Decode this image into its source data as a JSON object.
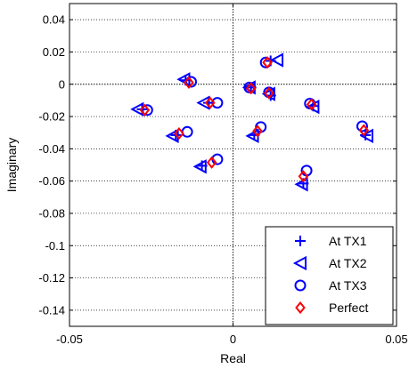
{
  "chart_data": {
    "type": "scatter",
    "title": "",
    "xlabel": "Real",
    "ylabel": "Imaginary",
    "xlim": [
      -0.05,
      0.05
    ],
    "ylim": [
      -0.15,
      0.05
    ],
    "xticks": [
      -0.05,
      0,
      0.05
    ],
    "xtick_labels": [
      "-0.05",
      "0",
      "0.05"
    ],
    "yticks": [
      0.04,
      0.02,
      0,
      -0.02,
      -0.04,
      -0.06,
      -0.08,
      -0.1,
      -0.12,
      -0.14
    ],
    "ytick_labels": [
      "0.04",
      "0.02",
      "0",
      "-0.02",
      "-0.04",
      "-0.06",
      "-0.08",
      "-0.1",
      "-0.12",
      "-0.14"
    ],
    "grid": true,
    "grid_style": "dotted",
    "zero_lines": true,
    "legend_position": "bottom-right",
    "series": [
      {
        "name": "At TX1",
        "marker": "plus",
        "color": "#0000ff",
        "points": [
          [
            -0.0278,
            -0.0155
          ],
          [
            -0.0145,
            0.0025
          ],
          [
            -0.0075,
            -0.0115
          ],
          [
            -0.0175,
            -0.0315
          ],
          [
            -0.0095,
            -0.0505
          ],
          [
            0.0055,
            -0.002
          ],
          [
            0.0115,
            0.0145
          ],
          [
            0.0115,
            -0.007
          ],
          [
            0.0065,
            -0.0315
          ],
          [
            0.0245,
            -0.0135
          ],
          [
            0.0215,
            -0.0615
          ],
          [
            0.0405,
            -0.0315
          ]
        ]
      },
      {
        "name": "At TX2",
        "marker": "triangle-left",
        "color": "#0000ff",
        "points": [
          [
            -0.0292,
            -0.0155
          ],
          [
            -0.015,
            0.003
          ],
          [
            -0.009,
            -0.0115
          ],
          [
            -0.0185,
            -0.032
          ],
          [
            -0.01,
            -0.051
          ],
          [
            0.005,
            -0.002
          ],
          [
            0.0135,
            0.015
          ],
          [
            0.011,
            -0.006
          ],
          [
            0.006,
            -0.032
          ],
          [
            0.0245,
            -0.014
          ],
          [
            0.021,
            -0.062
          ],
          [
            0.041,
            -0.032
          ]
        ]
      },
      {
        "name": "At TX3",
        "marker": "circle",
        "color": "#0000ff",
        "points": [
          [
            -0.0262,
            -0.016
          ],
          [
            -0.0128,
            0.0015
          ],
          [
            -0.0048,
            -0.0115
          ],
          [
            -0.014,
            -0.0295
          ],
          [
            -0.0048,
            -0.0465
          ],
          [
            0.005,
            -0.002
          ],
          [
            0.01,
            0.0135
          ],
          [
            0.011,
            -0.005
          ],
          [
            0.0085,
            -0.0265
          ],
          [
            0.0235,
            -0.012
          ],
          [
            0.0225,
            -0.0535
          ],
          [
            0.0395,
            -0.026
          ]
        ]
      },
      {
        "name": "Perfect",
        "marker": "diamond",
        "color": "#ff0000",
        "points": [
          [
            -0.027,
            -0.016
          ],
          [
            -0.0135,
            0.001
          ],
          [
            -0.007,
            -0.0115
          ],
          [
            -0.0165,
            -0.0305
          ],
          [
            -0.0065,
            -0.0485
          ],
          [
            0.0055,
            -0.0025
          ],
          [
            0.0105,
            0.0135
          ],
          [
            0.011,
            -0.0055
          ],
          [
            0.0075,
            -0.029
          ],
          [
            0.024,
            -0.0125
          ],
          [
            0.0215,
            -0.057
          ],
          [
            0.04,
            -0.0285
          ]
        ]
      }
    ]
  }
}
